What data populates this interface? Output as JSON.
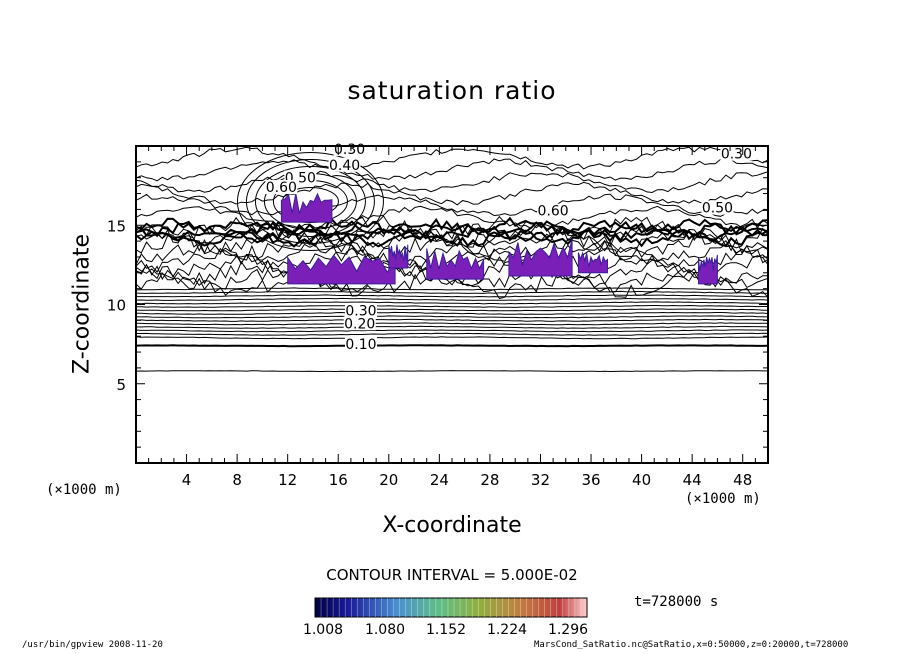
{
  "chart_data": {
    "type": "contour",
    "title": "saturation ratio",
    "xlabel": "X-coordinate",
    "ylabel": "Z-coordinate",
    "x_unit": "(×1000 m)",
    "xlim": [
      0,
      50
    ],
    "ylim": [
      0,
      20
    ],
    "x_ticks": [
      4,
      8,
      12,
      16,
      20,
      24,
      28,
      32,
      36,
      40,
      44,
      48
    ],
    "y_ticks": [
      5,
      10,
      15
    ],
    "contour_interval": "CONTOUR INTERVAL = 5.000E-02",
    "contour_labels": [
      {
        "text": "0.10",
        "x": 17.8,
        "z": 7.2
      },
      {
        "text": "0.20",
        "x": 17.7,
        "z": 8.5
      },
      {
        "text": "0.30",
        "x": 17.8,
        "z": 9.3
      },
      {
        "text": "0.30",
        "x": 16.9,
        "z": 19.5
      },
      {
        "text": "0.40",
        "x": 16.5,
        "z": 18.5
      },
      {
        "text": "0.50",
        "x": 13.0,
        "z": 17.7
      },
      {
        "text": "0.60",
        "x": 11.5,
        "z": 17.1
      },
      {
        "text": "0.60",
        "x": 33.0,
        "z": 15.6
      },
      {
        "text": "0.30",
        "x": 47.5,
        "z": 19.2
      },
      {
        "text": "0.50",
        "x": 46.0,
        "z": 15.8
      }
    ],
    "shaded_regions": [
      {
        "x": [
          11.5,
          15.5
        ],
        "z": [
          15.2,
          17.2
        ]
      },
      {
        "x": [
          12.0,
          20.5
        ],
        "z": [
          11.3,
          13.3
        ]
      },
      {
        "x": [
          20.0,
          21.5
        ],
        "z": [
          12.3,
          13.8
        ]
      },
      {
        "x": [
          23.0,
          27.5
        ],
        "z": [
          11.6,
          13.6
        ]
      },
      {
        "x": [
          29.5,
          34.5
        ],
        "z": [
          11.8,
          14.2
        ]
      },
      {
        "x": [
          35.0,
          37.3
        ],
        "z": [
          12.0,
          13.3
        ]
      },
      {
        "x": [
          44.5,
          46.0
        ],
        "z": [
          11.3,
          13.2
        ]
      }
    ],
    "colorbar": {
      "ticks": [
        "1.008",
        "1.080",
        "1.152",
        "1.224",
        "1.296"
      ]
    },
    "time": "t=728000 s"
  },
  "footer": {
    "left": "/usr/bin/gpview  2008-11-20",
    "right": "MarsCond_SatRatio.nc@SatRatio,x=0:50000,z=0:20000,t=728000"
  },
  "colors": {
    "shade": "#7a1fb8",
    "shade_dark": "#3a1e9a",
    "line": "#000000"
  }
}
